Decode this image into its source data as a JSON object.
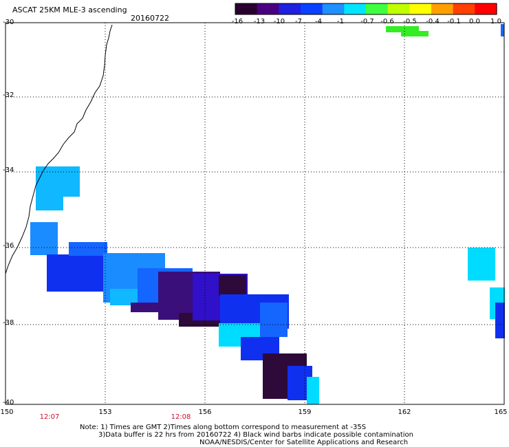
{
  "header": {
    "title": "ASCAT 25KM MLE-3 ascending",
    "date": "20160722"
  },
  "colorbar": {
    "ticks": [
      "-16",
      "-13",
      "-10",
      "-7",
      "-4",
      "-1",
      "-0.7",
      "-0.6",
      "-0.5",
      "-0.4",
      "-0.1",
      "0.0",
      "1.0"
    ],
    "colors": [
      "#2a0030",
      "#4b0082",
      "#2020e0",
      "#0a40ff",
      "#1e90ff",
      "#00e5ff",
      "#40ff40",
      "#c0ff00",
      "#ffff00",
      "#ffa000",
      "#ff4000",
      "#ff0000"
    ]
  },
  "axes": {
    "lat_labels": [
      "-30",
      "-32",
      "-34",
      "-36",
      "-38",
      "-40"
    ],
    "lon_labels": [
      "150",
      "153",
      "156",
      "159",
      "162",
      "165"
    ],
    "lat_range": [
      -40,
      -30
    ],
    "lon_range": [
      150,
      165
    ]
  },
  "times": [
    "12:07",
    "12:08"
  ],
  "notes": {
    "line1": "Note: 1) Times are GMT 2)Times along bottom correspond to measurement at -35S",
    "line2": "3)Data buffer is 22 hrs from 20160722 4) Black wind barbs indicate possible contamination",
    "line3": "NOAA/NESDIS/Center for Satellite Applications and Research"
  },
  "palette": {
    "dark": "#2d0a3a",
    "purple": "#3a0f7a",
    "indigo": "#3010c8",
    "blue": "#1030f0",
    "mid": "#1565ff",
    "azure": "#1aa0ff",
    "cyan": "#00dcff",
    "sky": "#10b8ff",
    "green": "#33ee22"
  }
}
